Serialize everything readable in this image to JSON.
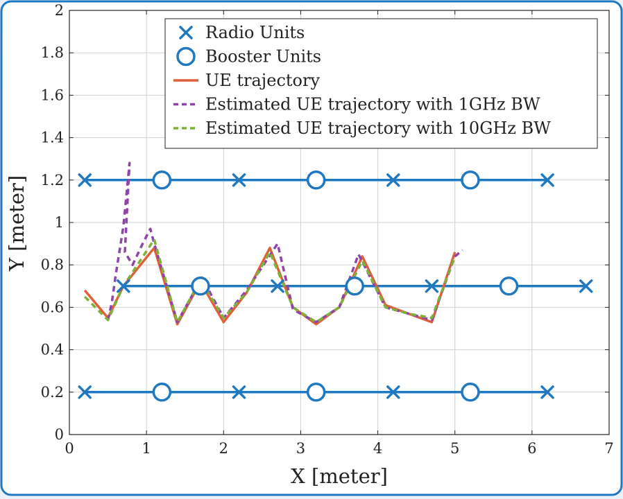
{
  "chart_data": {
    "type": "line",
    "xlabel": "X [meter]",
    "ylabel": "Y [meter]",
    "xlim": [
      0,
      7
    ],
    "ylim": [
      0,
      2
    ],
    "xticks": [
      0,
      1,
      2,
      3,
      4,
      5,
      6,
      7
    ],
    "yticks": [
      0,
      0.2,
      0.4,
      0.6,
      0.8,
      1,
      1.2,
      1.4,
      1.6,
      1.8,
      2
    ],
    "xtick_labels": [
      "0",
      "1",
      "2",
      "3",
      "4",
      "5",
      "6",
      "7"
    ],
    "ytick_labels": [
      "0",
      "0.2",
      "0.4",
      "0.6",
      "0.8",
      "1",
      "1.2",
      "1.4",
      "1.6",
      "1.8",
      "2"
    ],
    "grid": true,
    "legend_position": "top-right",
    "colors": {
      "units": "#1f78c0",
      "ue": "#e0603a",
      "est1": "#8e44a8",
      "est10": "#7fb03a",
      "frame": "#1f78c0",
      "background": "#e9f2fb",
      "grid": "#d0d0d0"
    },
    "rails": [
      {
        "y": 1.2,
        "x": [
          0.2,
          6.2
        ]
      },
      {
        "y": 0.7,
        "x": [
          0.7,
          6.7
        ]
      },
      {
        "y": 0.2,
        "x": [
          0.2,
          6.2
        ]
      }
    ],
    "series": [
      {
        "name": "Radio Units",
        "marker": "x",
        "points": [
          [
            0.2,
            1.2
          ],
          [
            2.2,
            1.2
          ],
          [
            4.2,
            1.2
          ],
          [
            6.2,
            1.2
          ],
          [
            0.7,
            0.7
          ],
          [
            2.7,
            0.7
          ],
          [
            4.7,
            0.7
          ],
          [
            6.7,
            0.7
          ],
          [
            0.2,
            0.2
          ],
          [
            2.2,
            0.2
          ],
          [
            4.2,
            0.2
          ],
          [
            6.2,
            0.2
          ]
        ]
      },
      {
        "name": "Booster Units",
        "marker": "o",
        "points": [
          [
            1.2,
            1.2
          ],
          [
            3.2,
            1.2
          ],
          [
            5.2,
            1.2
          ],
          [
            1.7,
            0.7
          ],
          [
            3.7,
            0.7
          ],
          [
            5.7,
            0.7
          ],
          [
            1.2,
            0.2
          ],
          [
            3.2,
            0.2
          ],
          [
            5.2,
            0.2
          ]
        ]
      },
      {
        "name": "UE trajectory",
        "style": "solid",
        "points": [
          [
            0.2,
            0.68
          ],
          [
            0.5,
            0.55
          ],
          [
            0.7,
            0.7
          ],
          [
            1.1,
            0.88
          ],
          [
            1.4,
            0.52
          ],
          [
            1.7,
            0.72
          ],
          [
            2.0,
            0.53
          ],
          [
            2.3,
            0.67
          ],
          [
            2.6,
            0.88
          ],
          [
            2.9,
            0.6
          ],
          [
            3.2,
            0.52
          ],
          [
            3.5,
            0.6
          ],
          [
            3.8,
            0.84
          ],
          [
            4.1,
            0.61
          ],
          [
            4.4,
            0.57
          ],
          [
            4.7,
            0.53
          ],
          [
            5.0,
            0.86
          ]
        ]
      },
      {
        "name": "Estimated UE trajectory with 1GHz BW",
        "style": "dashed",
        "points": [
          [
            0.5,
            0.54
          ],
          [
            0.55,
            0.62
          ],
          [
            0.6,
            0.75
          ],
          [
            0.7,
            0.98
          ],
          [
            0.78,
            1.28
          ],
          [
            0.72,
            0.86
          ],
          [
            0.82,
            0.8
          ],
          [
            0.95,
            0.9
          ],
          [
            1.05,
            0.97
          ],
          [
            1.1,
            0.9
          ],
          [
            1.4,
            0.53
          ],
          [
            1.72,
            0.74
          ],
          [
            2.0,
            0.55
          ],
          [
            2.3,
            0.68
          ],
          [
            2.7,
            0.9
          ],
          [
            2.9,
            0.59
          ],
          [
            3.2,
            0.53
          ],
          [
            3.5,
            0.6
          ],
          [
            3.75,
            0.85
          ],
          [
            4.1,
            0.6
          ],
          [
            4.7,
            0.54
          ],
          [
            5.0,
            0.84
          ],
          [
            5.1,
            0.87
          ]
        ]
      },
      {
        "name": "Estimated UE trajectory with 10GHz BW",
        "style": "dashed",
        "points": [
          [
            0.2,
            0.65
          ],
          [
            0.5,
            0.54
          ],
          [
            0.7,
            0.7
          ],
          [
            1.1,
            0.92
          ],
          [
            1.4,
            0.53
          ],
          [
            1.7,
            0.73
          ],
          [
            2.0,
            0.55
          ],
          [
            2.3,
            0.67
          ],
          [
            2.6,
            0.86
          ],
          [
            2.9,
            0.6
          ],
          [
            3.2,
            0.53
          ],
          [
            3.5,
            0.6
          ],
          [
            3.8,
            0.82
          ],
          [
            4.1,
            0.6
          ],
          [
            4.4,
            0.57
          ],
          [
            4.7,
            0.55
          ],
          [
            5.0,
            0.84
          ]
        ]
      }
    ]
  }
}
